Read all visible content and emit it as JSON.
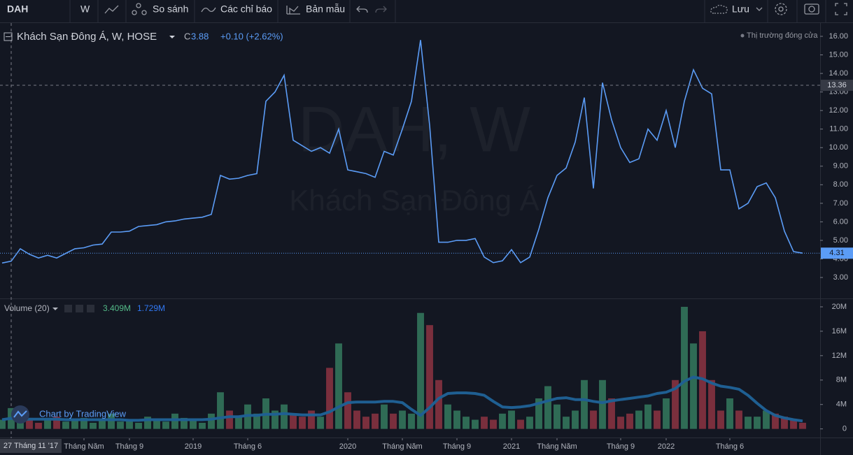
{
  "toolbar": {
    "symbol": "DAH",
    "interval": "W",
    "compare": "So sánh",
    "indicators": "Các chỉ báo",
    "templates": "Bản mẫu",
    "save": "Lưu"
  },
  "legend": {
    "title": "Khách Sạn Đông Á, W, HOSE",
    "close_label": "C",
    "close": 3.88,
    "change": "+0.10 (+2.62%)",
    "status": "Thị trường đóng cửa"
  },
  "watermark": {
    "symbol": "DAH, W",
    "name": "Khách Sạn Đông Á"
  },
  "branding": "Chart by TradingView",
  "chart_data": [
    {
      "type": "line",
      "color": "#5b9cf6",
      "values": [
        3.78,
        3.88,
        4.55,
        4.25,
        4.05,
        4.2,
        4.05,
        4.3,
        4.55,
        4.6,
        4.75,
        4.8,
        5.45,
        5.45,
        5.5,
        5.75,
        5.8,
        5.85,
        6.0,
        6.05,
        6.15,
        6.2,
        6.25,
        6.4,
        8.5,
        8.3,
        8.35,
        8.5,
        8.6,
        12.5,
        13.0,
        13.9,
        10.4,
        10.1,
        9.8,
        10.0,
        9.7,
        11.0,
        8.8,
        8.7,
        8.6,
        8.4,
        9.8,
        9.6,
        11.0,
        12.5,
        15.8,
        11.2,
        4.9,
        4.9,
        5.0,
        5.0,
        5.1,
        4.1,
        3.8,
        3.9,
        4.5,
        3.8,
        4.1,
        5.6,
        7.3,
        8.5,
        8.9,
        10.3,
        12.7,
        7.8,
        13.5,
        11.5,
        10.0,
        9.2,
        9.4,
        11.0,
        10.4,
        12.0,
        10.0,
        12.5,
        14.2,
        13.2,
        12.9,
        8.8,
        8.8,
        6.7,
        7.0,
        7.9,
        8.1,
        7.3,
        5.5,
        4.4,
        4.31
      ],
      "ylim": [
        1.87,
        16.64
      ],
      "yticks": [
        {
          "value": 3,
          "label": "3.00"
        },
        {
          "value": 4,
          "label": "4.00"
        },
        {
          "value": 5,
          "label": "5.00"
        },
        {
          "value": 6,
          "label": "6.00"
        },
        {
          "value": 7,
          "label": "7.00"
        },
        {
          "value": 8,
          "label": "8.00"
        },
        {
          "value": 9,
          "label": "9.00"
        },
        {
          "value": 10,
          "label": "10.00"
        },
        {
          "value": 11,
          "label": "11.00"
        },
        {
          "value": 12,
          "label": "12.00"
        },
        {
          "value": 13,
          "label": "13.00"
        },
        {
          "value": 14,
          "label": "14.00"
        },
        {
          "value": 15,
          "label": "15.00"
        },
        {
          "value": 16,
          "label": "16.00"
        }
      ],
      "last_price": 4.31,
      "crosshair": {
        "y": 13.36,
        "x_label": "27 Tháng 11 '17"
      },
      "grid": false
    },
    {
      "type": "bar",
      "title": "Volume (20)",
      "legend_values": [
        "3.409M",
        "1.729M"
      ],
      "up_color": "#2f6b55",
      "down_color": "#7a2f3d",
      "categories": [
        null,
        null,
        null,
        null,
        null,
        null,
        null,
        null,
        null,
        "Tháng Năm",
        null,
        null,
        null,
        null,
        "Tháng 9",
        null,
        null,
        null,
        null,
        null,
        null,
        "2019",
        null,
        null,
        null,
        null,
        null,
        "Tháng 6",
        null,
        null,
        null,
        null,
        null,
        null,
        null,
        null,
        null,
        null,
        "2020",
        null,
        null,
        null,
        null,
        null,
        "Tháng Năm",
        null,
        null,
        null,
        null,
        null,
        "Tháng 9",
        null,
        null,
        null,
        null,
        null,
        "2021",
        null,
        null,
        null,
        null,
        "Tháng Năm",
        null,
        null,
        null,
        null,
        null,
        null,
        "Tháng 9",
        null,
        null,
        null,
        null,
        "2022",
        null,
        null,
        null,
        null,
        null,
        null,
        "Tháng 6",
        null,
        null,
        null,
        null,
        null,
        null,
        null,
        null
      ],
      "values": [
        1.5,
        3.409,
        1.2,
        1.8,
        1,
        1.5,
        2,
        1.2,
        1.5,
        1.8,
        1,
        1.5,
        2.5,
        1.2,
        1.5,
        1,
        2,
        1.5,
        1.2,
        2.5,
        1.8,
        1.5,
        1,
        2.5,
        6,
        3,
        2,
        4,
        2.5,
        5,
        3,
        4,
        2.5,
        2,
        3,
        2,
        10,
        14,
        6,
        3,
        2,
        2.5,
        4,
        2.5,
        3,
        2.5,
        19,
        17,
        8,
        4,
        3,
        2,
        1.5,
        2,
        1.5,
        2.5,
        3,
        1.5,
        2,
        5,
        7,
        4,
        2,
        3,
        8,
        3,
        8,
        5,
        2,
        2.5,
        3,
        4,
        3,
        5,
        8,
        20,
        14,
        16,
        8,
        3,
        5,
        3,
        2,
        2,
        3,
        2.5,
        2,
        1.5,
        1
      ],
      "ma": {
        "color": "#1f5f92",
        "values": [
          1.5,
          1.729,
          1.5,
          1.6,
          1.6,
          1.6,
          1.6,
          1.5,
          1.5,
          1.5,
          1.5,
          1.5,
          1.5,
          1.5,
          1.4,
          1.4,
          1.5,
          1.5,
          1.5,
          1.5,
          1.5,
          1.5,
          1.5,
          1.6,
          1.8,
          2,
          2,
          2.2,
          2.2,
          2.4,
          2.4,
          2.5,
          2.4,
          2.3,
          2.3,
          2.3,
          2.8,
          3.6,
          4.3,
          4.4,
          4.4,
          4.4,
          4.5,
          4.5,
          4.3,
          3.2,
          2.2,
          3.5,
          5,
          5.8,
          5.9,
          5.9,
          5.8,
          5.5,
          4.5,
          3.6,
          3.5,
          3.6,
          3.8,
          4.2,
          4.6,
          5,
          5.1,
          4.8,
          4.8,
          4.5,
          4.3,
          4.6,
          4.8,
          5,
          5.2,
          5.4,
          5.8,
          6,
          6.6,
          7.8,
          8.5,
          8.2,
          7.5,
          7,
          6.8,
          6.5,
          5.5,
          4.2,
          3,
          2.2,
          1.8,
          1.5,
          1.3
        ]
      },
      "ylim": [
        -1.3,
        20.8
      ],
      "yticks": [
        0,
        {
          "value": 4,
          "label": "4M"
        },
        {
          "value": 8,
          "label": "8M"
        },
        {
          "value": 12,
          "label": "12M"
        },
        {
          "value": 16,
          "label": "16M"
        },
        {
          "value": 20,
          "label": "20M"
        }
      ],
      "grid": false
    }
  ]
}
